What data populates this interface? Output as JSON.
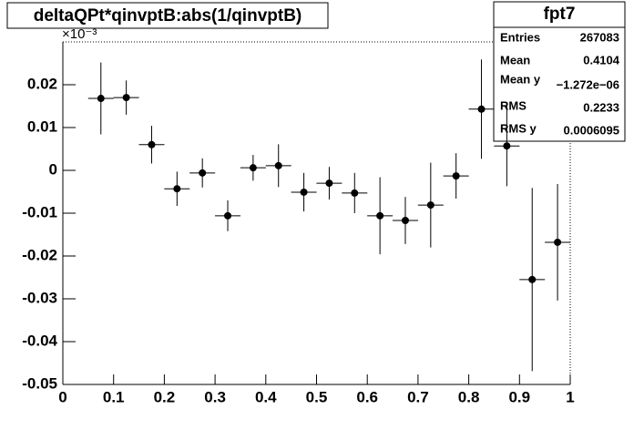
{
  "chart_data": {
    "type": "errorbar",
    "title": "deltaQPt*qinvptB:abs(1/qinvptB)",
    "y_multiplier": "×10⁻³",
    "color": "#000000",
    "x": [
      0.075,
      0.125,
      0.175,
      0.225,
      0.275,
      0.325,
      0.375,
      0.425,
      0.475,
      0.525,
      0.575,
      0.625,
      0.675,
      0.725,
      0.775,
      0.825,
      0.875,
      0.925,
      0.975
    ],
    "values": [
      0.0168,
      0.017,
      0.006,
      -0.0043,
      -0.0006,
      -0.0106,
      0.0006,
      0.0011,
      -0.0051,
      -0.003,
      -0.0053,
      -0.0106,
      -0.0117,
      -0.0081,
      -0.0013,
      0.0143,
      0.0057,
      -0.0255,
      -0.0168
    ],
    "errors": [
      0.0084,
      0.004,
      0.0044,
      0.004,
      0.0034,
      0.0036,
      0.003,
      0.005,
      0.0045,
      0.0038,
      0.0047,
      0.009,
      0.0055,
      0.0099,
      0.0053,
      0.0116,
      0.0094,
      0.0214,
      0.0136
    ],
    "xlim": [
      0,
      1
    ],
    "xticks": [
      0,
      0.1,
      0.2,
      0.3,
      0.4,
      0.5,
      0.6,
      0.7,
      0.8,
      0.9,
      1
    ],
    "ylim": [
      -0.05,
      0.03
    ],
    "yticks": [
      -0.05,
      -0.04,
      -0.03,
      -0.02,
      -0.01,
      0,
      0.01,
      0.02
    ],
    "stats": {
      "title": "fpt7",
      "rows": [
        {
          "label": "Entries",
          "value": "267083"
        },
        {
          "label": "Mean",
          "value": "0.4104"
        },
        {
          "label": "Mean y",
          "value": "−1.272e−06"
        },
        {
          "label": "RMS",
          "value": "0.2233"
        },
        {
          "label": "RMS y",
          "value": "0.0006095"
        }
      ]
    }
  }
}
